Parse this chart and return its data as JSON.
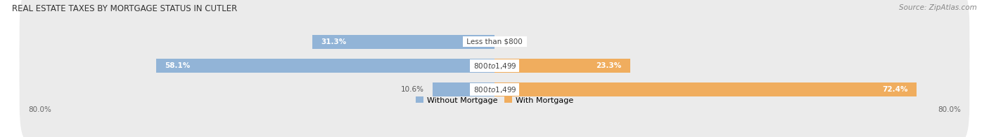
{
  "title": "REAL ESTATE TAXES BY MORTGAGE STATUS IN CUTLER",
  "source": "Source: ZipAtlas.com",
  "rows": [
    {
      "label": "Less than $800",
      "without_mortgage": 31.3,
      "with_mortgage": 0.0
    },
    {
      "label": "$800 to $1,499",
      "without_mortgage": 58.1,
      "with_mortgage": 23.3
    },
    {
      "label": "$800 to $1,499",
      "without_mortgage": 10.6,
      "with_mortgage": 72.4
    }
  ],
  "x_axis_max": 80.0,
  "color_without": "#92b4d7",
  "color_with": "#f0ad5e",
  "bar_height": 0.58,
  "row_bg_color": "#ebebeb",
  "legend_label_without": "Without Mortgage",
  "legend_label_with": "With Mortgage",
  "title_fontsize": 8.5,
  "source_fontsize": 7.5,
  "bar_label_fontsize": 7.5,
  "axis_label_fontsize": 7.5,
  "legend_fontsize": 8,
  "label_color_inside": "#ffffff",
  "label_color_outside": "#555555"
}
